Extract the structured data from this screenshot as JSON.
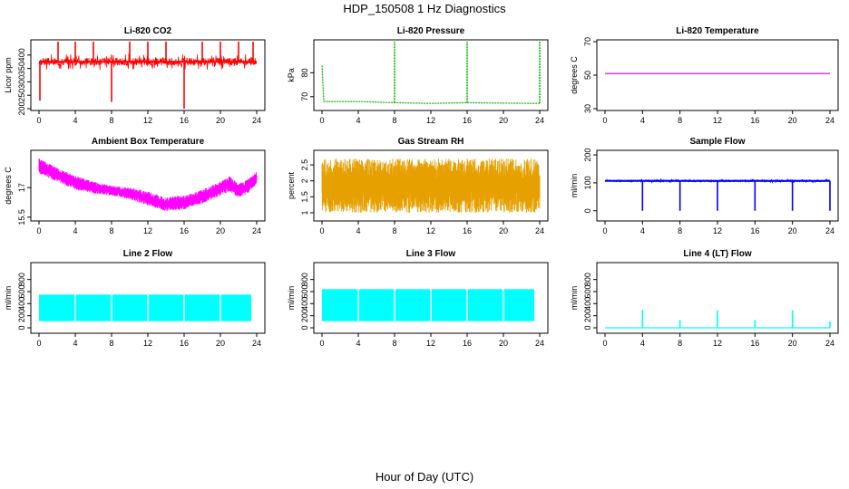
{
  "page": {
    "title": "HDP_150508  1 Hz Diagnostics",
    "x_caption": "Hour of Day (UTC)"
  },
  "chart_data": [
    {
      "type": "line",
      "title": "Li-820 CO2",
      "ylabel": "Licor ppm",
      "color": "#ff0000",
      "xlim": [
        0,
        24
      ],
      "ylim": [
        200,
        450
      ],
      "x_ticks": [
        0,
        4,
        8,
        12,
        16,
        20,
        24
      ],
      "y_ticks": [
        200,
        250,
        300,
        350,
        400
      ],
      "series": [
        {
          "kind": "noisy",
          "base": 375,
          "amp": 14,
          "seed": 3
        }
      ],
      "events": [
        {
          "x": 0.1,
          "y": 230
        },
        {
          "x": 2.1,
          "y": 450
        },
        {
          "x": 4.0,
          "y": 450
        },
        {
          "x": 6.0,
          "y": 450
        },
        {
          "x": 8.0,
          "y": 225
        },
        {
          "x": 10.0,
          "y": 450
        },
        {
          "x": 12.0,
          "y": 450
        },
        {
          "x": 14.0,
          "y": 450
        },
        {
          "x": 16.0,
          "y": 200
        },
        {
          "x": 18.0,
          "y": 450
        },
        {
          "x": 20.0,
          "y": 450
        },
        {
          "x": 22.0,
          "y": 450
        },
        {
          "x": 23.6,
          "y": 450
        }
      ]
    },
    {
      "type": "line",
      "title": "Li-820 Pressure",
      "ylabel": "kPa",
      "color": "#00bb00",
      "xlim": [
        0,
        24
      ],
      "ylim": [
        65,
        93
      ],
      "x_ticks": [
        0,
        4,
        8,
        12,
        16,
        20,
        24
      ],
      "y_ticks": [
        70,
        80
      ],
      "series": [
        {
          "kind": "flat",
          "points": [
            [
              0,
              83
            ],
            [
              0.2,
              68
            ],
            [
              4,
              68
            ],
            [
              8,
              67.5
            ],
            [
              12,
              67.2
            ],
            [
              16,
              67.5
            ],
            [
              20,
              67.3
            ],
            [
              24,
              67.2
            ]
          ]
        }
      ],
      "events": [
        {
          "x": 8.0,
          "y": 93
        },
        {
          "x": 16.0,
          "y": 93
        },
        {
          "x": 24.0,
          "y": 93
        }
      ]
    },
    {
      "type": "line",
      "title": "Li-820 Temperature",
      "ylabel": "degrees C",
      "color": "#cc00cc",
      "xlim": [
        0,
        24
      ],
      "ylim": [
        30,
        70
      ],
      "x_ticks": [
        0,
        4,
        8,
        12,
        16,
        20,
        24
      ],
      "y_ticks": [
        30,
        50,
        70
      ],
      "series": [
        {
          "kind": "flat",
          "points": [
            [
              0,
              51
            ],
            [
              24,
              51
            ]
          ]
        }
      ],
      "events": []
    },
    {
      "type": "line",
      "title": "Ambient Box Temperature",
      "ylabel": "degrees C",
      "color": "#ff00ff",
      "xlim": [
        0,
        24
      ],
      "ylim": [
        15.4,
        18.8
      ],
      "x_ticks": [
        0,
        4,
        8,
        12,
        16,
        20,
        24
      ],
      "y_ticks": [
        15.5,
        17.0
      ],
      "series": [
        {
          "kind": "band",
          "seed": 7,
          "lo": [
            [
              0,
              17.7
            ],
            [
              2,
              17.3
            ],
            [
              4,
              16.9
            ],
            [
              6,
              16.7
            ],
            [
              8,
              16.6
            ],
            [
              10,
              16.4
            ],
            [
              12,
              16.1
            ],
            [
              14,
              15.8
            ],
            [
              16,
              15.9
            ],
            [
              18,
              16.2
            ],
            [
              20,
              16.6
            ],
            [
              21,
              16.8
            ],
            [
              22,
              16.5
            ],
            [
              23,
              16.7
            ],
            [
              24,
              17.2
            ]
          ],
          "hi": [
            [
              0,
              18.5
            ],
            [
              2,
              18.0
            ],
            [
              4,
              17.6
            ],
            [
              6,
              17.3
            ],
            [
              8,
              17.1
            ],
            [
              10,
              17.0
            ],
            [
              12,
              16.8
            ],
            [
              14,
              16.5
            ],
            [
              16,
              16.6
            ],
            [
              18,
              16.9
            ],
            [
              20,
              17.3
            ],
            [
              21,
              17.6
            ],
            [
              22,
              17.2
            ],
            [
              23,
              17.4
            ],
            [
              24,
              17.8
            ]
          ]
        }
      ],
      "events": []
    },
    {
      "type": "line",
      "title": "Gas Stream RH",
      "ylabel": "percent",
      "color": "#e6a000",
      "xlim": [
        0,
        24
      ],
      "ylim": [
        0.8,
        2.9
      ],
      "x_ticks": [
        0,
        4,
        8,
        12,
        16,
        20,
        24
      ],
      "y_ticks": [
        1.0,
        1.5,
        2.0,
        2.5
      ],
      "series": [
        {
          "kind": "band",
          "seed": 11,
          "lo": [
            [
              0,
              1.0
            ],
            [
              24,
              1.0
            ]
          ],
          "hi": [
            [
              0,
              2.7
            ],
            [
              24,
              2.7
            ]
          ]
        }
      ],
      "events": []
    },
    {
      "type": "line",
      "title": "Sample Flow",
      "ylabel": "ml/min",
      "color": "#0000ff",
      "xlim": [
        0,
        24
      ],
      "ylim": [
        -30,
        210
      ],
      "x_ticks": [
        0,
        4,
        8,
        12,
        16,
        20,
        24
      ],
      "y_ticks": [
        0,
        100,
        200
      ],
      "series": [
        {
          "kind": "noisy",
          "base": 107,
          "amp": 3,
          "seed": 5
        }
      ],
      "events": [
        {
          "x": 4.0,
          "y": 0
        },
        {
          "x": 8.0,
          "y": 0
        },
        {
          "x": 12.0,
          "y": 0
        },
        {
          "x": 16.0,
          "y": 0
        },
        {
          "x": 20.0,
          "y": 0
        },
        {
          "x": 24.0,
          "y": 0
        }
      ]
    },
    {
      "type": "area",
      "title": "Line 2 Flow",
      "ylabel": "ml/min",
      "color": "#00ffff",
      "xlim": [
        0,
        24
      ],
      "ylim": [
        -60,
        1050
      ],
      "x_ticks": [
        0,
        4,
        8,
        12,
        16,
        20,
        24
      ],
      "y_ticks": [
        0,
        200,
        400,
        600,
        800
      ],
      "series": [
        {
          "kind": "block",
          "lo": 110,
          "hi": 550
        }
      ],
      "events": [
        {
          "x": 4.0,
          "y": 0
        },
        {
          "x": 8.0,
          "y": 0
        },
        {
          "x": 12.0,
          "y": 0
        },
        {
          "x": 16.0,
          "y": 0
        },
        {
          "x": 20.0,
          "y": 0
        },
        {
          "x": 24.0,
          "y": 0
        }
      ]
    },
    {
      "type": "area",
      "title": "Line 3 Flow",
      "ylabel": "ml/min",
      "color": "#00ffff",
      "xlim": [
        0,
        24
      ],
      "ylim": [
        -60,
        1050
      ],
      "x_ticks": [
        0,
        4,
        8,
        12,
        16,
        20,
        24
      ],
      "y_ticks": [
        0,
        200,
        400,
        600,
        800
      ],
      "series": [
        {
          "kind": "block",
          "lo": 110,
          "hi": 640
        }
      ],
      "events": [
        {
          "x": 4.0,
          "y": 0
        },
        {
          "x": 8.0,
          "y": 0
        },
        {
          "x": 12.0,
          "y": 0
        },
        {
          "x": 16.0,
          "y": 0
        },
        {
          "x": 20.0,
          "y": 0
        },
        {
          "x": 24.0,
          "y": 0
        }
      ]
    },
    {
      "type": "line",
      "title": "Line 4 (LT) Flow",
      "ylabel": "ml/min",
      "color": "#00ffff",
      "xlim": [
        0,
        24
      ],
      "ylim": [
        -60,
        1050
      ],
      "x_ticks": [
        0,
        4,
        8,
        12,
        16,
        20,
        24
      ],
      "y_ticks": [
        0,
        200,
        400,
        600,
        800
      ],
      "series": [
        {
          "kind": "flat",
          "points": [
            [
              0,
              0
            ],
            [
              24,
              0
            ]
          ]
        }
      ],
      "events": [
        {
          "x": 4.0,
          "y": 300
        },
        {
          "x": 8.0,
          "y": 130
        },
        {
          "x": 12.0,
          "y": 290
        },
        {
          "x": 16.0,
          "y": 130
        },
        {
          "x": 20.0,
          "y": 290
        },
        {
          "x": 24.0,
          "y": 110
        }
      ]
    }
  ]
}
